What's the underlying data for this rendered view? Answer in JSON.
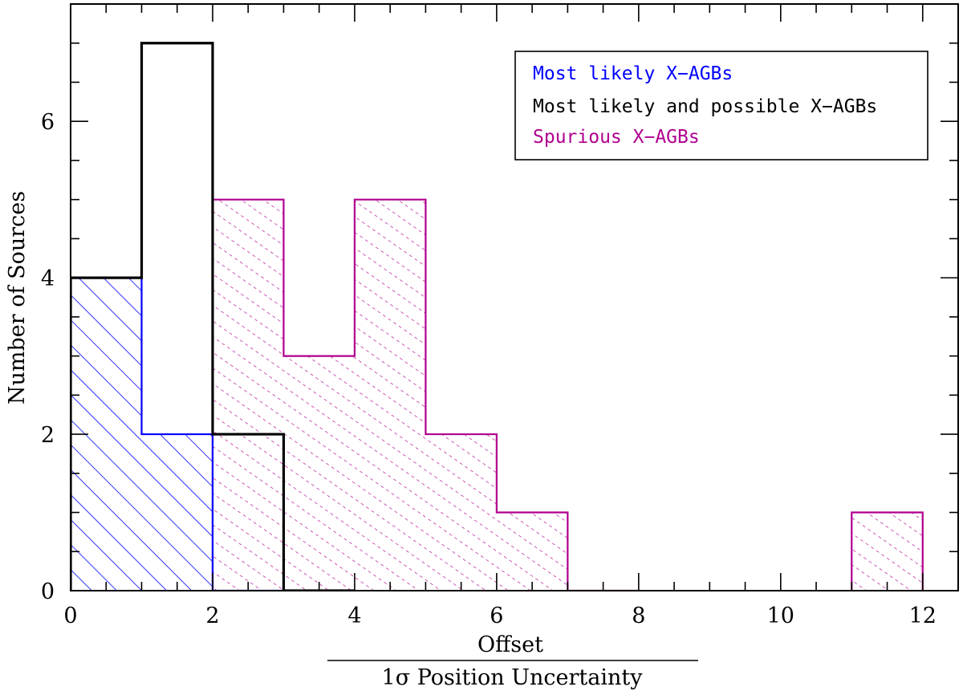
{
  "chart_data": {
    "type": "bar",
    "subtype": "step-histogram",
    "bin_edges": [
      0,
      1,
      2,
      3,
      4,
      5,
      6,
      7,
      8,
      9,
      10,
      11,
      12
    ],
    "series": [
      {
        "name": "Most likely X−AGBs",
        "color": "#0000ff",
        "fill": "hatch-diagonal",
        "values": [
          4,
          2,
          0,
          0,
          0,
          0,
          0,
          0,
          0,
          0,
          0,
          0
        ]
      },
      {
        "name": "Most likely and possible X−AGBs",
        "color": "#000000",
        "fill": "none",
        "values": [
          4,
          7,
          2,
          0,
          0,
          0,
          0,
          0,
          0,
          0,
          0,
          0
        ]
      },
      {
        "name": "Spurious X−AGBs",
        "color": "#b0008f",
        "fill": "hatch-dotted",
        "values": [
          0,
          0,
          5,
          3,
          5,
          2,
          1,
          0,
          0,
          0,
          0,
          1
        ]
      }
    ],
    "xlabel_numerator": "Offset",
    "xlabel_denominator": "1σ Position Uncertainty",
    "ylabel": "Number of Sources",
    "xlim": [
      0,
      12.5
    ],
    "ylim": [
      0,
      7.5
    ],
    "xticks": [
      0,
      2,
      4,
      6,
      8,
      10,
      12
    ],
    "yticks": [
      0,
      2,
      4,
      6
    ],
    "legend_position": "top-right",
    "grid": false
  }
}
